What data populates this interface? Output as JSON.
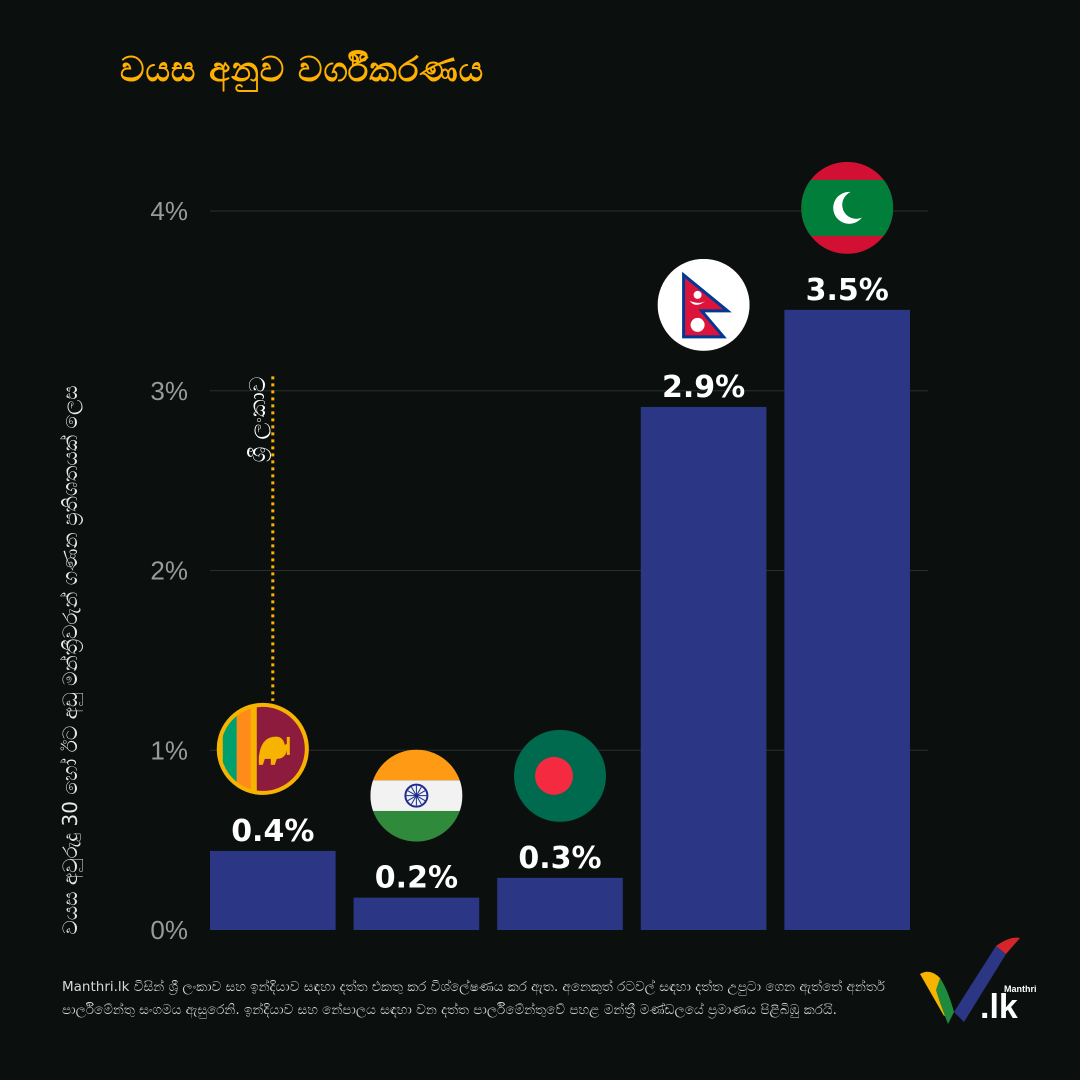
{
  "title": "වයස අනුව වර්ගීකරණය",
  "footer": "Manthri.lk විසින් ශ්‍රී ලංකාව සහ ඉන්දියාව සඳහා දත්ත එකතු කර විශ්ලේෂණය කර ඇත. අනෙකුත් රටවල් සඳහා දත්ත උපුටා ගෙන ඇත්තේ අන්තර් පාර්ලිමේන්තු සංගමය ඇසුරෙනි. ඉන්දියාව සහ නේපාලය සඳහා වන දත්ත පාර්ලිමේන්තුවේ පහළ මන්ත්‍රී මණ්ඩලයේ ප්‍රමාණය පිළිබිඹු කරයි.",
  "logo": {
    "brand": "Manthri",
    "tld": ".lk"
  },
  "chart_data": {
    "type": "bar",
    "title": "වයස අනුව වර්ගීකරණය",
    "xlabel": "",
    "ylabel": "වයස අවුරුදු 30 හෝ ඊට අඩු මන්ත්‍රීවරුන් ගණන ප්‍රතිශතයක් ලෙස",
    "ylim": [
      0,
      4
    ],
    "y_ticks": [
      "0%",
      "1%",
      "2%",
      "3%",
      "4%"
    ],
    "grid": true,
    "categories_flags": [
      "sri-lanka-flag",
      "india-flag",
      "bangladesh-flag",
      "nepal-flag",
      "maldives-flag"
    ],
    "values": [
      0.44,
      0.18,
      0.29,
      2.91,
      3.45
    ],
    "value_labels": [
      "0.4%",
      "0.2%",
      "0.3%",
      "2.9%",
      "3.5%"
    ],
    "annotation": {
      "text": "ශ්‍රී ලංකාව",
      "category_index": 0
    },
    "colors": {
      "bar": "#2b3785",
      "title": "#ffb000",
      "annotation": "#ffb000",
      "grid": "#2a2f2e"
    }
  }
}
